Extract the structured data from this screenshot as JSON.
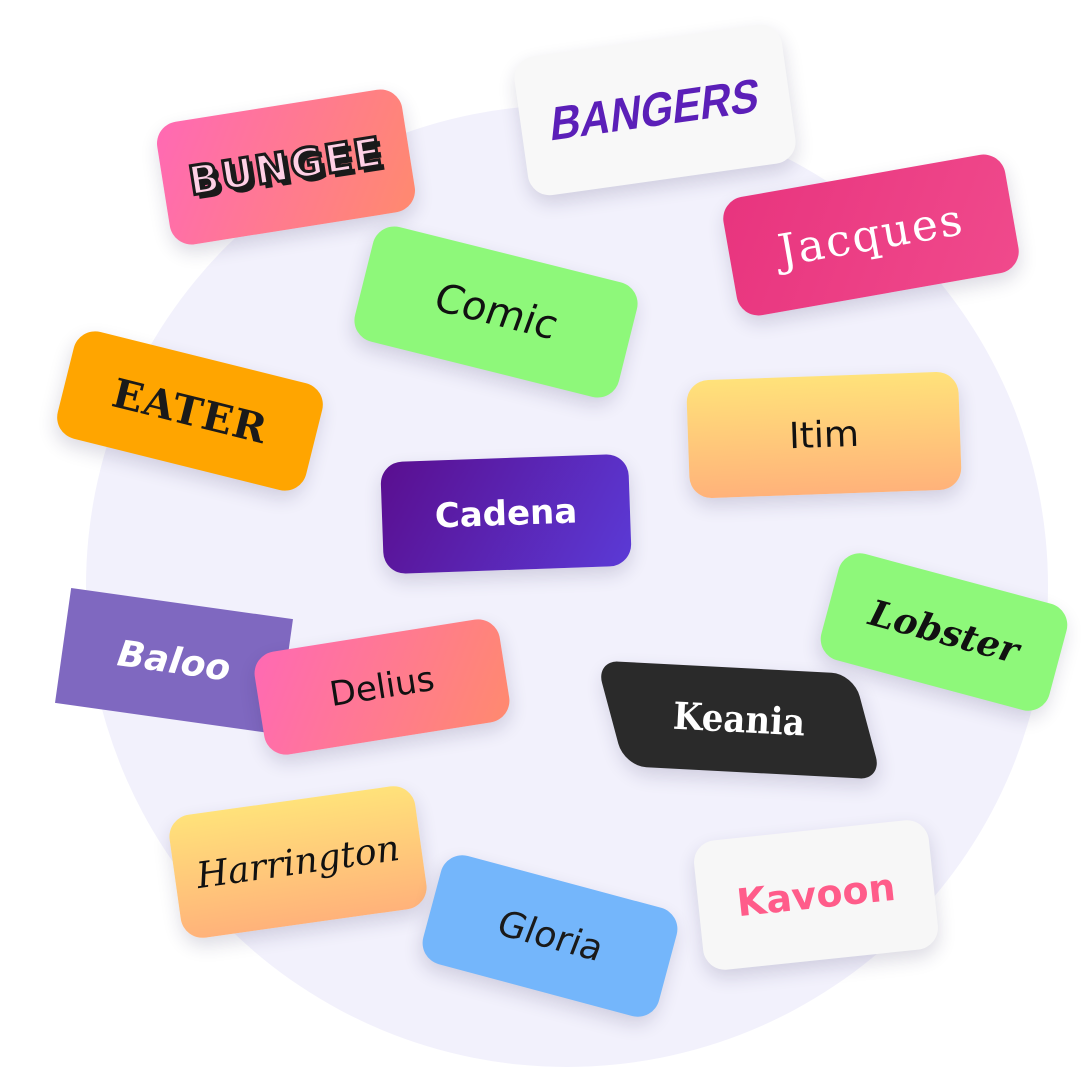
{
  "font_tags": [
    {
      "id": "bungee",
      "label": "BUNGEE",
      "color": "#ff69b4"
    },
    {
      "id": "bangers",
      "label": "BANGERS",
      "color": "#5b1fb8"
    },
    {
      "id": "jacques",
      "label": "Jacques",
      "color": "#e8347e"
    },
    {
      "id": "comic",
      "label": "Comic",
      "color": "#8ef87a"
    },
    {
      "id": "eater",
      "label": "EATER",
      "color": "#ffa500"
    },
    {
      "id": "itim",
      "label": "Itim",
      "color": "#ffd07a"
    },
    {
      "id": "cadena",
      "label": "Cadena",
      "color": "#5a0e8f"
    },
    {
      "id": "lobster",
      "label": "Lobster",
      "color": "#8ef87a"
    },
    {
      "id": "baloo",
      "label": "Baloo",
      "color": "#7f68c0"
    },
    {
      "id": "delius",
      "label": "Delius",
      "color": "#ff7a9a"
    },
    {
      "id": "keania",
      "label": "Keania",
      "color": "#2a2a2a"
    },
    {
      "id": "harrington",
      "label": "Harrington",
      "color": "#ffd07a"
    },
    {
      "id": "gloria",
      "label": "Gloria",
      "color": "#74b6fb"
    },
    {
      "id": "kavoon",
      "label": "Kavoon",
      "color": "#ff5c8a"
    }
  ],
  "background_circle_color": "#f2f1fc"
}
